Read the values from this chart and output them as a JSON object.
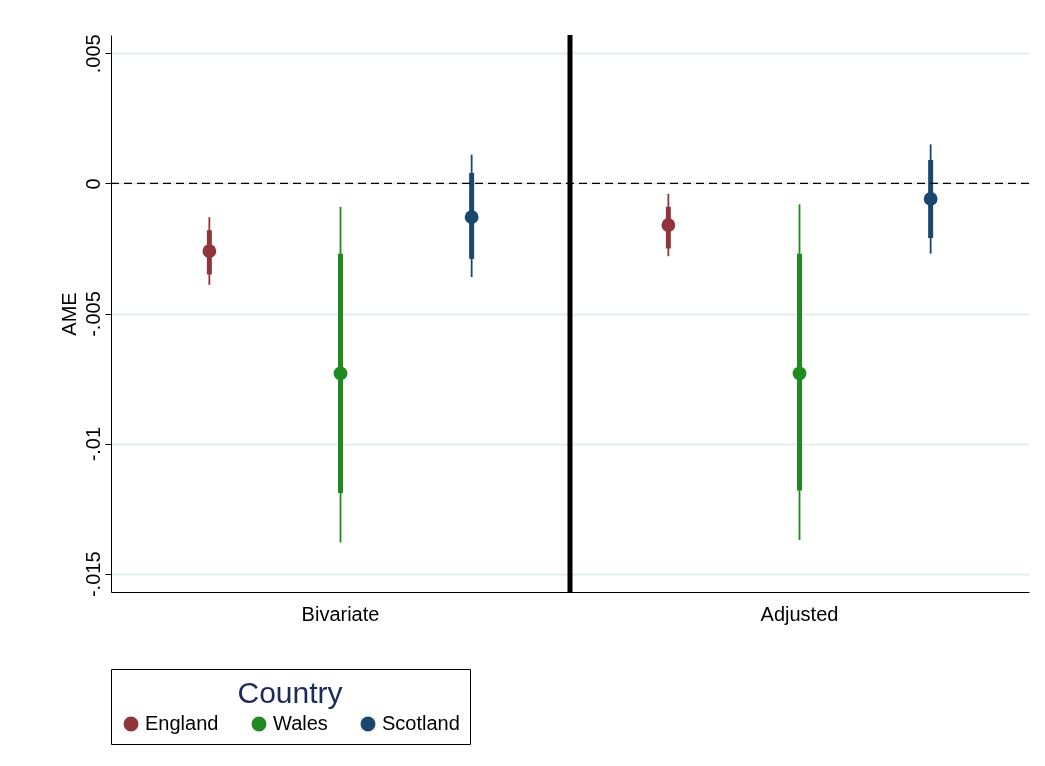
{
  "chart_data": {
    "type": "box",
    "ylabel": "AME",
    "legend_title": "Country",
    "categories": [
      "Bivariate",
      "Adjusted"
    ],
    "ylim": [
      -0.0157,
      0.0057
    ],
    "yticks": [
      {
        "value": 0.005,
        "label": ".005"
      },
      {
        "value": 0,
        "label": "0"
      },
      {
        "value": -0.005,
        "label": "-.005"
      },
      {
        "value": -0.01,
        "label": "-.01"
      },
      {
        "value": -0.015,
        "label": "-.015"
      }
    ],
    "grid": "y",
    "legend": "bottom",
    "marker": "circle",
    "series": [
      {
        "name": "England",
        "color": "#90353b",
        "boxes": [
          {
            "low": -0.0039,
            "q1": -0.0035,
            "median": -0.0026,
            "q3": -0.0018,
            "high": -0.0013
          },
          {
            "low": -0.0028,
            "q1": -0.0025,
            "median": -0.0016,
            "q3": -0.0009,
            "high": -0.0004
          }
        ]
      },
      {
        "name": "Wales",
        "color": "#1f8a1f",
        "boxes": [
          {
            "low": -0.0138,
            "q1": -0.0119,
            "median": -0.0073,
            "q3": -0.0027,
            "high": -0.0009
          },
          {
            "low": -0.0137,
            "q1": -0.0118,
            "median": -0.0073,
            "q3": -0.0027,
            "high": -0.0008
          }
        ]
      },
      {
        "name": "Scotland",
        "color": "#1a476f",
        "boxes": [
          {
            "low": -0.0036,
            "q1": -0.0029,
            "median": -0.0013,
            "q3": 0.0004,
            "high": 0.0011
          },
          {
            "low": -0.0027,
            "q1": -0.0021,
            "median": -0.0006,
            "q3": 0.0009,
            "high": 0.0015
          }
        ]
      }
    ],
    "ref_lines": [
      {
        "axis": "y",
        "value": 0,
        "color": "#000000",
        "line_style": "dashed"
      },
      {
        "axis": "x",
        "value": "Adjusted",
        "color": "#000000",
        "line_style": "solid"
      }
    ]
  }
}
